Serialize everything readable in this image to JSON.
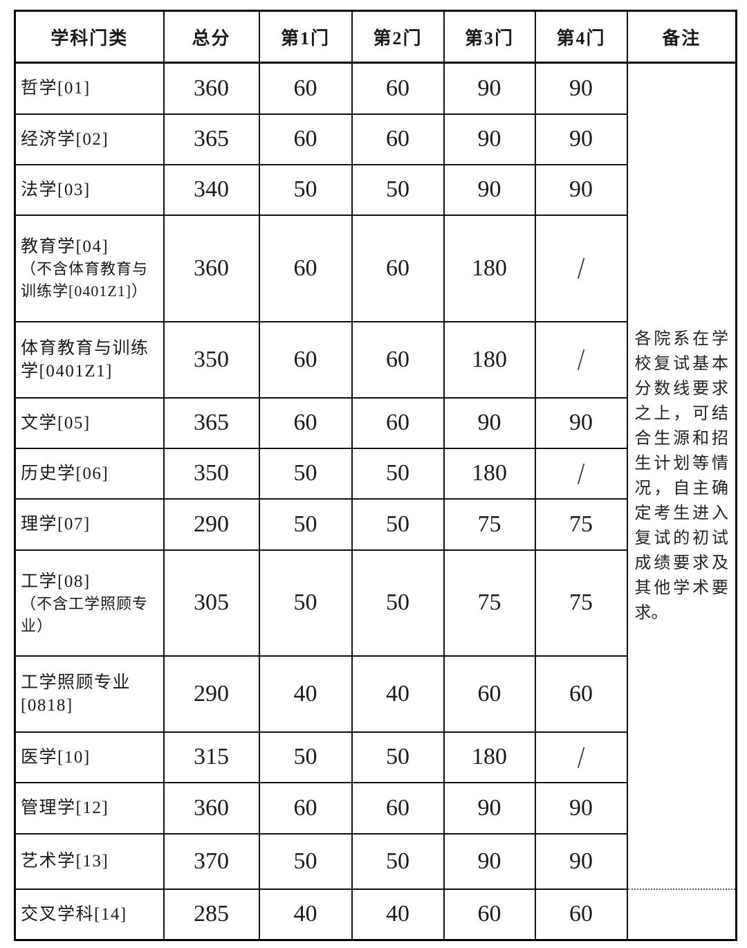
{
  "table": {
    "headers": [
      "学科门类",
      "总分",
      "第1门",
      "第2门",
      "第3门",
      "第4门",
      "备注"
    ],
    "rows": [
      {
        "category": "哲学[01]",
        "note": "",
        "total": "360",
        "sub1": "60",
        "sub2": "60",
        "sub3": "90",
        "sub4": "90"
      },
      {
        "category": "经济学[02]",
        "note": "",
        "total": "365",
        "sub1": "60",
        "sub2": "60",
        "sub3": "90",
        "sub4": "90"
      },
      {
        "category": "法学[03]",
        "note": "",
        "total": "340",
        "sub1": "50",
        "sub2": "50",
        "sub3": "90",
        "sub4": "90"
      },
      {
        "category": "教育学[04]",
        "note": "（不含体育教育与\n训练学[0401Z1]）",
        "total": "360",
        "sub1": "60",
        "sub2": "60",
        "sub3": "180",
        "sub4": "/"
      },
      {
        "category": "体育教育与训练\n学[0401Z1]",
        "note": "",
        "total": "350",
        "sub1": "60",
        "sub2": "60",
        "sub3": "180",
        "sub4": "/"
      },
      {
        "category": "文学[05]",
        "note": "",
        "total": "365",
        "sub1": "60",
        "sub2": "60",
        "sub3": "90",
        "sub4": "90"
      },
      {
        "category": "历史学[06]",
        "note": "",
        "total": "350",
        "sub1": "50",
        "sub2": "50",
        "sub3": "180",
        "sub4": "/"
      },
      {
        "category": "理学[07]",
        "note": "",
        "total": "290",
        "sub1": "50",
        "sub2": "50",
        "sub3": "75",
        "sub4": "75"
      },
      {
        "category": "工学[08]",
        "note": "（不含工学照顾专\n业）",
        "total": "305",
        "sub1": "50",
        "sub2": "50",
        "sub3": "75",
        "sub4": "75"
      },
      {
        "category": "工学照顾专业\n[0818]",
        "note": "",
        "total": "290",
        "sub1": "40",
        "sub2": "40",
        "sub3": "60",
        "sub4": "60"
      },
      {
        "category": "医学[10]",
        "note": "",
        "total": "315",
        "sub1": "50",
        "sub2": "50",
        "sub3": "180",
        "sub4": "/"
      },
      {
        "category": "管理学[12]",
        "note": "",
        "total": "360",
        "sub1": "60",
        "sub2": "60",
        "sub3": "90",
        "sub4": "90"
      },
      {
        "category": "艺术学[13]",
        "note": "",
        "total": "370",
        "sub1": "50",
        "sub2": "50",
        "sub3": "90",
        "sub4": "90"
      },
      {
        "category": "交叉学科[14]",
        "note": "",
        "total": "285",
        "sub1": "40",
        "sub2": "40",
        "sub3": "60",
        "sub4": "60"
      }
    ],
    "remark": "各院系在学校复试基本分数线要求之上，可结合生源和招生计划等情况，自主确定考生进入复试的初试成绩要求及其他学术要求。"
  }
}
